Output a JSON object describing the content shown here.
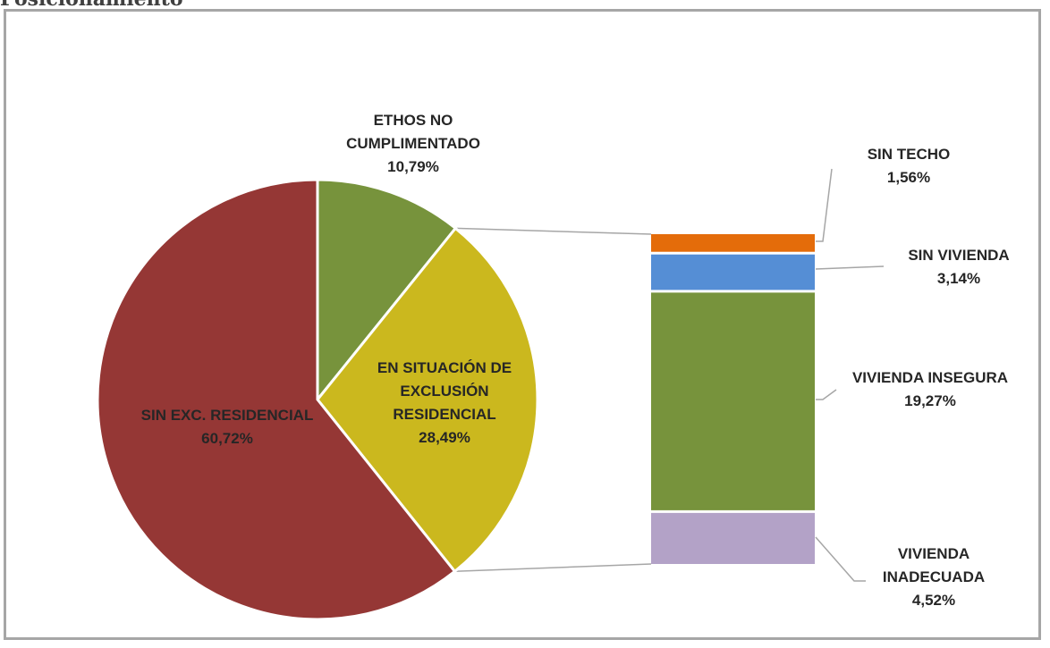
{
  "page": {
    "clipped_heading": "Posicionamiento"
  },
  "chart_data": {
    "type": "bar-of-pie",
    "pie": {
      "slices": [
        {
          "label": "ETHOS NO CUMPLIMENTADO",
          "value": 10.79,
          "display": "10,79%",
          "color": "#77933c"
        },
        {
          "label": "EN SITUACIÓN DE EXCLUSIÓN RESIDENCIAL",
          "value": 28.49,
          "display": "28,49%",
          "color": "#cbb81e"
        },
        {
          "label": "SIN EXC. RESIDENCIAL",
          "value": 60.72,
          "display": "60,72%",
          "color": "#953735"
        }
      ]
    },
    "bar": {
      "segments": [
        {
          "label": "SIN TECHO",
          "value": 1.56,
          "display": "1,56%",
          "color": "#e46c0a"
        },
        {
          "label": "SIN VIVIENDA",
          "value": 3.14,
          "display": "3,14%",
          "color": "#558ed5"
        },
        {
          "label": "VIVIENDA INSEGURA",
          "value": 19.27,
          "display": "19,27%",
          "color": "#77933c"
        },
        {
          "label": "VIVIENDA INADECUADA",
          "value": 4.52,
          "display": "4,52%",
          "color": "#b3a2c7"
        }
      ]
    }
  }
}
